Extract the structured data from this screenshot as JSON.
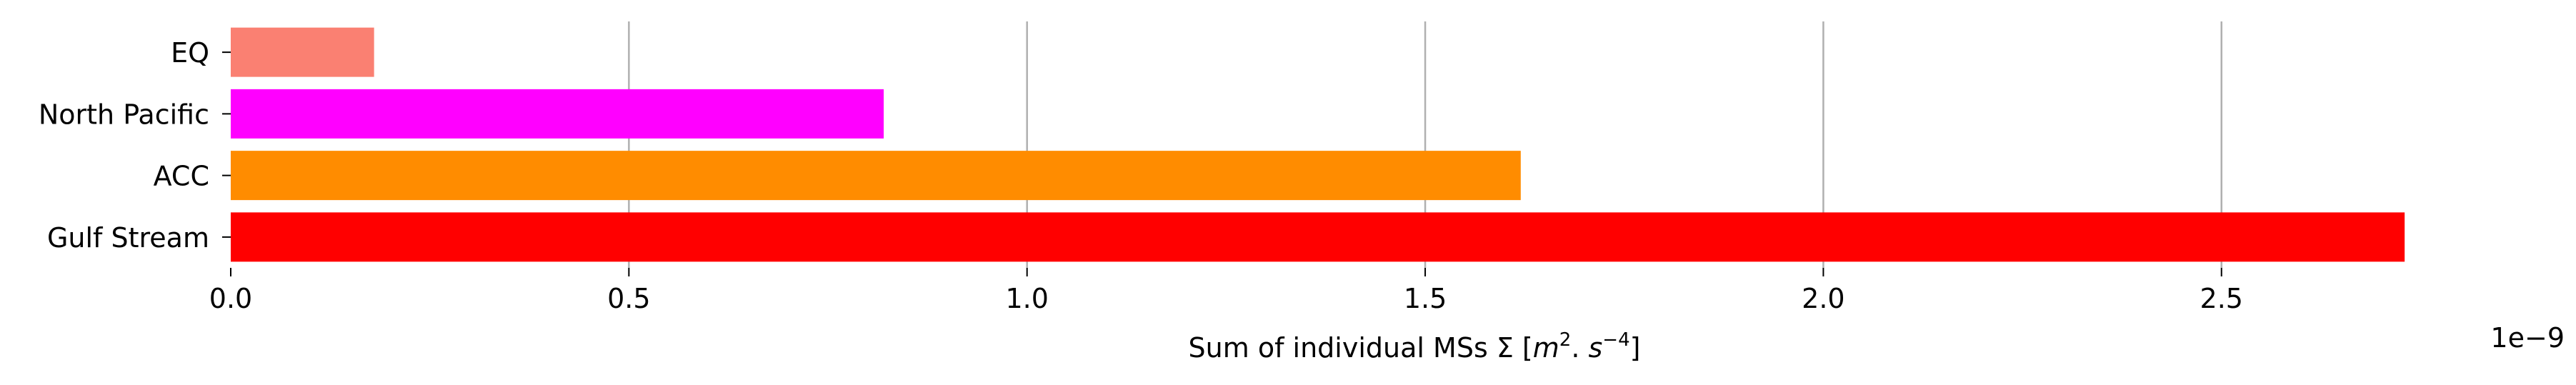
{
  "chart_data": {
    "type": "bar",
    "orientation": "horizontal",
    "categories": [
      "EQ",
      "North Pacific",
      "ACC",
      "Gulf Stream"
    ],
    "values": [
      1.8e-10,
      8.2e-10,
      1.62e-09,
      2.73e-09
    ],
    "colors": [
      "#fa8072",
      "#ff00ff",
      "#ff8c00",
      "#ff0000"
    ],
    "xlabel_prefix": "Sum of individual MSs Σ [",
    "xlabel_unit_m": "m",
    "xlabel_unit_m_exp": "2",
    "xlabel_unit_sep": ". ",
    "xlabel_unit_s": "s",
    "xlabel_unit_s_exp": "−4",
    "xlabel_suffix": "]",
    "x_offset_text": "1e−9",
    "x_ticks": [
      0.0,
      5e-10,
      1e-09,
      1.5e-09,
      2e-09,
      2.5e-09
    ],
    "x_tick_labels": [
      "0.0",
      "0.5",
      "1.0",
      "1.5",
      "2.0",
      "2.5"
    ],
    "xlim": [
      0,
      2.79e-09
    ],
    "grid": "x-major",
    "grid_color": "#b0b0b0"
  }
}
